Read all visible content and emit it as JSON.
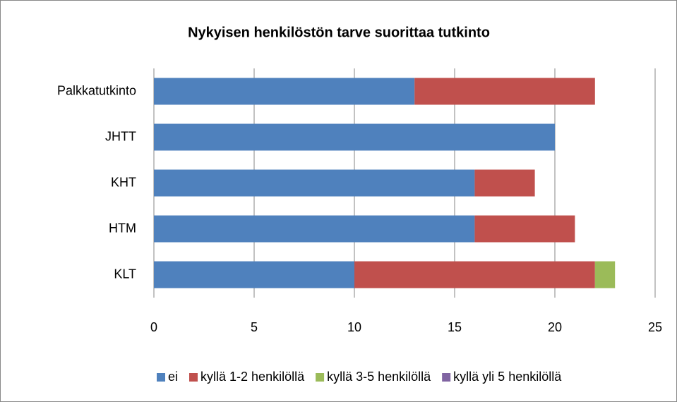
{
  "chart_data": {
    "type": "bar",
    "orientation": "horizontal",
    "stacked": true,
    "title": "Nykyisen henkilöstön tarve suorittaa tutkinto",
    "categories": [
      "Palkkatutkinto",
      "JHTT",
      "KHT",
      "HTM",
      "KLT"
    ],
    "series": [
      {
        "name": "ei",
        "color": "#4f81bd",
        "values": [
          13,
          20,
          16,
          16,
          10
        ]
      },
      {
        "name": "kyllä 1-2 henkilöllä",
        "color": "#c0504d",
        "values": [
          9,
          0,
          3,
          5,
          12
        ]
      },
      {
        "name": "kyllä 3-5 henkilöllä",
        "color": "#9bbb59",
        "values": [
          0,
          0,
          0,
          0,
          1
        ]
      },
      {
        "name": "kyllä yli 5 henkilöllä",
        "color": "#8064a2",
        "values": [
          0,
          0,
          0,
          0,
          0
        ]
      }
    ],
    "xlim": [
      0,
      25
    ],
    "xticks": [
      0,
      5,
      10,
      15,
      20,
      25
    ],
    "grid": true,
    "legend": "bottom"
  }
}
